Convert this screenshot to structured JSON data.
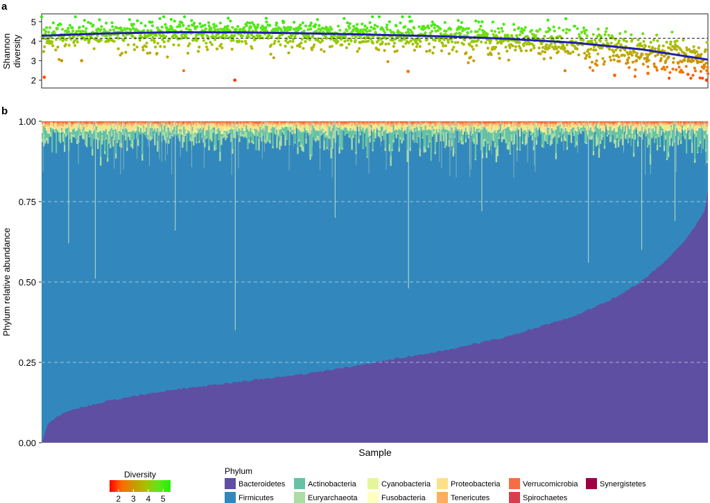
{
  "chart_data": [
    {
      "panel": "a",
      "type": "scatter",
      "ylabel": "Shannon diversity",
      "xlabel": "",
      "ylim": [
        1.6,
        5.4
      ],
      "yticks": [
        "2",
        "3",
        "4",
        "5"
      ],
      "reference_line": 4.15,
      "trend": {
        "color": "#1f1fa8",
        "points": [
          [
            0,
            4.28
          ],
          [
            0.1,
            4.4
          ],
          [
            0.2,
            4.46
          ],
          [
            0.3,
            4.45
          ],
          [
            0.4,
            4.4
          ],
          [
            0.5,
            4.33
          ],
          [
            0.6,
            4.25
          ],
          [
            0.7,
            4.12
          ],
          [
            0.8,
            3.92
          ],
          [
            0.9,
            3.58
          ],
          [
            1.0,
            3.05
          ]
        ]
      },
      "outliers": [
        [
          0.004,
          2.15
        ],
        [
          0.03,
          3.0
        ],
        [
          0.06,
          3.0
        ],
        [
          0.29,
          2.0
        ],
        [
          0.55,
          2.45
        ],
        [
          0.86,
          2.25
        ],
        [
          0.91,
          2.35
        ],
        [
          0.97,
          2.3
        ],
        [
          0.998,
          2.0
        ]
      ],
      "n_points": 1600
    },
    {
      "panel": "b",
      "type": "area",
      "xlabel": "Sample",
      "ylabel": "Phylum relative abundance",
      "ylim": [
        0,
        1
      ],
      "yticks": [
        "0.00",
        "0.25",
        "0.50",
        "0.75",
        "1.00"
      ],
      "grid": "horizontal dashed",
      "bacteroidetes_curve": [
        [
          0,
          0.0
        ],
        [
          0.005,
          0.03
        ],
        [
          0.01,
          0.06
        ],
        [
          0.03,
          0.09
        ],
        [
          0.05,
          0.105
        ],
        [
          0.1,
          0.13
        ],
        [
          0.15,
          0.15
        ],
        [
          0.2,
          0.165
        ],
        [
          0.3,
          0.19
        ],
        [
          0.4,
          0.215
        ],
        [
          0.5,
          0.25
        ],
        [
          0.6,
          0.285
        ],
        [
          0.7,
          0.33
        ],
        [
          0.8,
          0.395
        ],
        [
          0.85,
          0.44
        ],
        [
          0.9,
          0.5
        ],
        [
          0.93,
          0.555
        ],
        [
          0.96,
          0.615
        ],
        [
          0.98,
          0.67
        ],
        [
          0.995,
          0.72
        ],
        [
          1.0,
          0.78
        ]
      ],
      "spikes": [
        [
          0.08,
          0.51
        ],
        [
          0.29,
          0.35
        ],
        [
          0.55,
          0.48
        ],
        [
          0.82,
          0.56
        ],
        [
          0.9,
          0.6
        ],
        [
          0.04,
          0.62
        ],
        [
          0.2,
          0.66
        ],
        [
          0.44,
          0.7
        ],
        [
          0.66,
          0.72
        ],
        [
          0.95,
          0.69
        ]
      ]
    }
  ],
  "panels": {
    "a": {
      "letter": "a"
    },
    "b": {
      "letter": "b"
    }
  },
  "legend_diversity": {
    "title": "Diversity",
    "ticks": [
      "2",
      "3",
      "4",
      "5"
    ],
    "gradient": [
      "#ff0000",
      "#ff6a00",
      "#c79a00",
      "#a8c000",
      "#5fe61b",
      "#22f000"
    ]
  },
  "legend_phylum": {
    "title": "Phylum",
    "items": [
      {
        "label": "Bacteroidetes",
        "color": "#5e4fa2"
      },
      {
        "label": "Firmicutes",
        "color": "#3288bd"
      },
      {
        "label": "Actinobacteria",
        "color": "#66c2a5"
      },
      {
        "label": "Euryarchaeota",
        "color": "#abdda4"
      },
      {
        "label": "Cyanobacteria",
        "color": "#e6f598"
      },
      {
        "label": "Fusobacteria",
        "color": "#ffffbf"
      },
      {
        "label": "Proteobacteria",
        "color": "#fee08b"
      },
      {
        "label": "Tenericutes",
        "color": "#fdae61"
      },
      {
        "label": "Verrucomicrobia",
        "color": "#f46d43"
      },
      {
        "label": "Spirochaetes",
        "color": "#d53e4f"
      },
      {
        "label": "Synergistetes",
        "color": "#9e0142"
      }
    ]
  }
}
